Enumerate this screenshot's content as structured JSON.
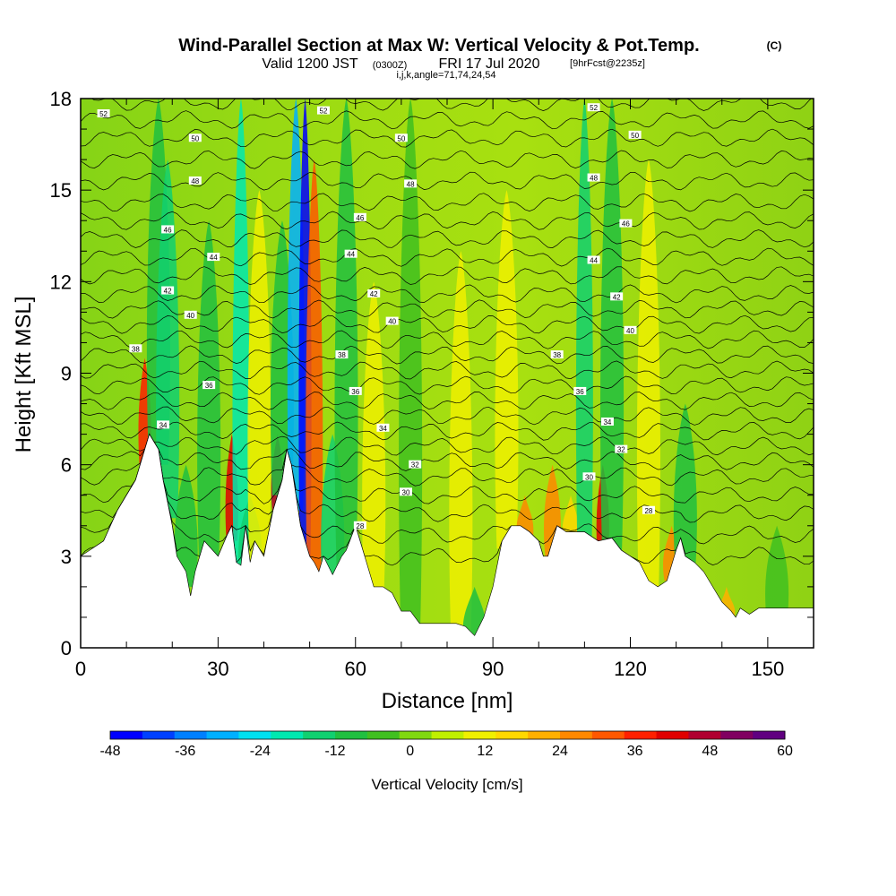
{
  "title": {
    "main": "Wind-Parallel Section at Max W: Vertical Velocity & Pot.Temp.",
    "copyright": "(C)",
    "valid_prefix": "Valid 1200 JST",
    "valid_utc": "(0300Z)",
    "valid_date": "FRI 17 Jul 2020",
    "forecast": "[9hrFcst@2235z]",
    "indices": "i,j,k,angle=71,74,24,54"
  },
  "chart_data": {
    "type": "heatmap",
    "xlabel": "Distance [nm]",
    "ylabel": "Height [Kft MSL]",
    "xlim": [
      0,
      160
    ],
    "ylim": [
      0,
      18
    ],
    "x_ticks": [
      "0",
      "30",
      "60",
      "90",
      "120",
      "150"
    ],
    "y_ticks": [
      "0",
      "3",
      "6",
      "9",
      "12",
      "15",
      "18"
    ],
    "colorbar": {
      "label": "Vertical Velocity [cm/s]",
      "range": [
        -48,
        60
      ],
      "tick_labels": [
        "-48",
        "-36",
        "-24",
        "-12",
        "0",
        "12",
        "24",
        "36",
        "48",
        "60"
      ],
      "colors": [
        "#0000ff",
        "#0040ff",
        "#0080ff",
        "#00b0ff",
        "#00e0f0",
        "#00e8b0",
        "#10d070",
        "#20c040",
        "#40c020",
        "#80d810",
        "#c0f000",
        "#f0f000",
        "#ffd800",
        "#ffb000",
        "#ff8800",
        "#ff5800",
        "#ff2000",
        "#e00000",
        "#b00030",
        "#800060",
        "#600080"
      ]
    },
    "terrain": {
      "x": [
        0,
        5,
        8,
        12,
        15,
        17,
        18,
        20,
        21,
        23,
        24,
        25,
        27,
        30,
        32,
        33,
        34,
        35,
        36,
        37,
        38,
        40,
        42,
        44,
        45,
        46,
        47,
        48,
        50,
        51,
        52,
        53,
        55,
        57,
        58,
        60,
        62,
        64,
        66,
        68,
        70,
        72,
        74,
        78,
        82,
        84,
        86,
        88,
        90,
        92,
        94,
        96,
        98,
        100,
        101,
        102,
        104,
        106,
        108,
        110,
        113,
        116,
        118,
        120,
        122,
        124,
        126,
        128,
        130,
        131,
        132,
        134,
        136,
        138,
        140,
        142,
        143,
        144,
        146,
        148,
        150,
        152,
        155,
        160
      ],
      "height_kft": [
        3.0,
        3.5,
        4.5,
        5.5,
        7.0,
        6.5,
        5.5,
        4.0,
        3.0,
        2.5,
        1.7,
        2.5,
        3.5,
        3.0,
        3.7,
        4.0,
        2.8,
        2.7,
        4.0,
        2.8,
        3.5,
        3.0,
        4.5,
        5.5,
        6.5,
        6.0,
        5.0,
        4.0,
        3.0,
        2.8,
        2.5,
        3.0,
        2.4,
        3.0,
        3.2,
        4.0,
        3.0,
        2.0,
        2.0,
        1.8,
        1.2,
        1.2,
        0.8,
        0.8,
        0.8,
        0.7,
        0.4,
        1.0,
        2.0,
        3.5,
        4.0,
        4.0,
        3.8,
        3.5,
        3.0,
        3.0,
        4.0,
        3.8,
        3.8,
        3.8,
        3.5,
        3.6,
        3.2,
        3.0,
        2.8,
        2.2,
        2.0,
        2.2,
        3.2,
        3.6,
        3.0,
        2.8,
        2.5,
        2.0,
        1.5,
        1.2,
        1.0,
        1.3,
        1.1,
        1.3,
        1.3,
        1.3,
        1.3,
        1.3
      ]
    },
    "vertical_velocity_features_cm_s": [
      {
        "x": 14,
        "top_kft": 9.5,
        "value": 38
      },
      {
        "x": 17,
        "top_kft": 18,
        "value": -10
      },
      {
        "x": 19,
        "top_kft": 16,
        "value": -14
      },
      {
        "x": 23,
        "top_kft": 6,
        "value": -12
      },
      {
        "x": 28,
        "top_kft": 14,
        "value": -12
      },
      {
        "x": 33,
        "top_kft": 7,
        "value": 40
      },
      {
        "x": 35,
        "top_kft": 18,
        "value": -22
      },
      {
        "x": 37,
        "top_kft": 5,
        "value": -14
      },
      {
        "x": 39,
        "top_kft": 15,
        "value": 10
      },
      {
        "x": 43,
        "top_kft": 7,
        "value": 48
      },
      {
        "x": 44,
        "top_kft": 14,
        "value": -12
      },
      {
        "x": 47,
        "top_kft": 18,
        "value": -30
      },
      {
        "x": 49,
        "top_kft": 18,
        "value": -44
      },
      {
        "x": 51,
        "top_kft": 16,
        "value": 30
      },
      {
        "x": 55,
        "top_kft": 7,
        "value": -14
      },
      {
        "x": 58,
        "top_kft": 18,
        "value": -8
      },
      {
        "x": 64,
        "top_kft": 12,
        "value": 10
      },
      {
        "x": 72,
        "top_kft": 18,
        "value": -6
      },
      {
        "x": 83,
        "top_kft": 13,
        "value": 12
      },
      {
        "x": 86,
        "top_kft": 2,
        "value": -10
      },
      {
        "x": 93,
        "top_kft": 15,
        "value": 10
      },
      {
        "x": 97,
        "top_kft": 5,
        "value": 26
      },
      {
        "x": 103,
        "top_kft": 6,
        "value": 24
      },
      {
        "x": 107,
        "top_kft": 5,
        "value": 18
      },
      {
        "x": 110,
        "top_kft": 18,
        "value": -16
      },
      {
        "x": 114,
        "top_kft": 6,
        "value": 40
      },
      {
        "x": 116,
        "top_kft": 18,
        "value": -8
      },
      {
        "x": 120,
        "top_kft": 3,
        "value": 26
      },
      {
        "x": 124,
        "top_kft": 16,
        "value": 12
      },
      {
        "x": 129,
        "top_kft": 4,
        "value": 28
      },
      {
        "x": 132,
        "top_kft": 8,
        "value": -12
      },
      {
        "x": 141,
        "top_kft": 2,
        "value": 20
      },
      {
        "x": 152,
        "top_kft": 4,
        "value": -6
      }
    ],
    "pot_temp_contours": {
      "unit": "C",
      "levels": [
        26,
        27,
        28,
        29,
        30,
        31,
        32,
        33,
        34,
        35,
        36,
        37,
        38,
        39,
        40,
        41,
        42,
        43,
        44,
        45,
        46,
        47,
        48,
        49,
        50,
        51,
        52
      ],
      "mean_height_kft": [
        3.0,
        3.7,
        4.4,
        5.0,
        5.6,
        6.1,
        6.6,
        7.1,
        7.6,
        8.1,
        8.6,
        9.1,
        9.6,
        10.1,
        10.6,
        11.1,
        11.6,
        12.2,
        12.8,
        13.4,
        14.0,
        14.6,
        15.3,
        16.0,
        16.7,
        17.3,
        17.9
      ]
    },
    "contour_labels": [
      {
        "x": 5,
        "y": 17.5,
        "text": "52"
      },
      {
        "x": 53,
        "y": 17.6,
        "text": "52"
      },
      {
        "x": 112,
        "y": 17.7,
        "text": "52"
      },
      {
        "x": 25,
        "y": 16.7,
        "text": "50"
      },
      {
        "x": 70,
        "y": 16.7,
        "text": "50"
      },
      {
        "x": 121,
        "y": 16.8,
        "text": "50"
      },
      {
        "x": 25,
        "y": 15.3,
        "text": "48"
      },
      {
        "x": 72,
        "y": 15.2,
        "text": "48"
      },
      {
        "x": 112,
        "y": 15.4,
        "text": "48"
      },
      {
        "x": 19,
        "y": 13.7,
        "text": "46"
      },
      {
        "x": 61,
        "y": 14.1,
        "text": "46"
      },
      {
        "x": 119,
        "y": 13.9,
        "text": "46"
      },
      {
        "x": 29,
        "y": 12.8,
        "text": "44"
      },
      {
        "x": 59,
        "y": 12.9,
        "text": "44"
      },
      {
        "x": 112,
        "y": 12.7,
        "text": "44"
      },
      {
        "x": 19,
        "y": 11.7,
        "text": "42"
      },
      {
        "x": 64,
        "y": 11.6,
        "text": "42"
      },
      {
        "x": 117,
        "y": 11.5,
        "text": "42"
      },
      {
        "x": 24,
        "y": 10.9,
        "text": "40"
      },
      {
        "x": 68,
        "y": 10.7,
        "text": "40"
      },
      {
        "x": 120,
        "y": 10.4,
        "text": "40"
      },
      {
        "x": 12,
        "y": 9.8,
        "text": "38"
      },
      {
        "x": 57,
        "y": 9.6,
        "text": "38"
      },
      {
        "x": 104,
        "y": 9.6,
        "text": "38"
      },
      {
        "x": 28,
        "y": 8.6,
        "text": "36"
      },
      {
        "x": 60,
        "y": 8.4,
        "text": "36"
      },
      {
        "x": 109,
        "y": 8.4,
        "text": "36"
      },
      {
        "x": 18,
        "y": 7.3,
        "text": "34"
      },
      {
        "x": 66,
        "y": 7.2,
        "text": "34"
      },
      {
        "x": 115,
        "y": 7.4,
        "text": "34"
      },
      {
        "x": 73,
        "y": 6.0,
        "text": "32"
      },
      {
        "x": 118,
        "y": 6.5,
        "text": "32"
      },
      {
        "x": 71,
        "y": 5.1,
        "text": "30"
      },
      {
        "x": 111,
        "y": 5.6,
        "text": "30"
      },
      {
        "x": 61,
        "y": 4.0,
        "text": "28"
      },
      {
        "x": 124,
        "y": 4.5,
        "text": "28"
      }
    ]
  }
}
